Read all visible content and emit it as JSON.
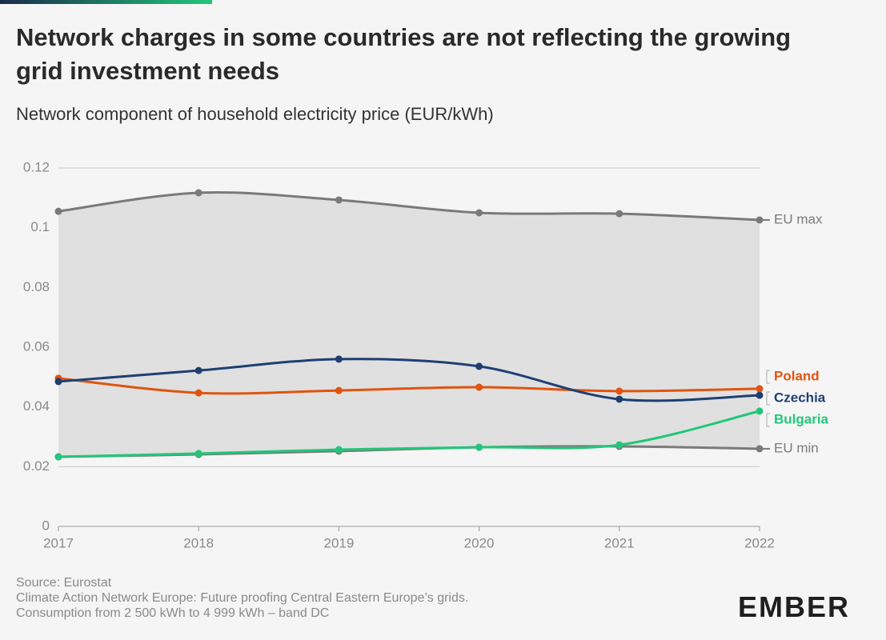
{
  "chart_data": {
    "type": "line",
    "title": "Network charges in some countries are not reflecting the growing grid investment needs",
    "subtitle": "Network component of household electricity price (EUR/kWh)",
    "categories": [
      "2017",
      "2018",
      "2019",
      "2020",
      "2021",
      "2022"
    ],
    "series": [
      {
        "name": "EU max",
        "color": "#7a7a7a",
        "values": [
          0.1055,
          0.1117,
          0.1093,
          0.105,
          0.1047,
          0.1026
        ]
      },
      {
        "name": "EU min",
        "color": "#7a7a7a",
        "values": [
          0.0233,
          0.0241,
          0.0252,
          0.0265,
          0.0268,
          0.026
        ]
      },
      {
        "name": "Poland",
        "color": "#e0540f",
        "values": [
          0.0496,
          0.0447,
          0.0455,
          0.0466,
          0.0453,
          0.0461
        ]
      },
      {
        "name": "Czechia",
        "color": "#1f3f73",
        "values": [
          0.0485,
          0.0522,
          0.056,
          0.0536,
          0.0426,
          0.0439
        ]
      },
      {
        "name": "Bulgaria",
        "color": "#22c77a",
        "values": [
          0.0233,
          0.0244,
          0.0257,
          0.0265,
          0.0273,
          0.0386
        ]
      }
    ],
    "range_fill": "#e0e0e0",
    "ylim": [
      0,
      0.12
    ],
    "yticks": [
      0,
      0.02,
      0.04,
      0.06,
      0.08,
      0.1,
      0.12
    ],
    "grid": true,
    "sources": [
      "Source: Eurostat",
      "Climate Action Network Europe: Future proofing Central Eastern Europe’s grids.",
      "Consumption from 2 500 kWh to 4 999 kWh – band DC"
    ],
    "logo": "EMBER"
  }
}
